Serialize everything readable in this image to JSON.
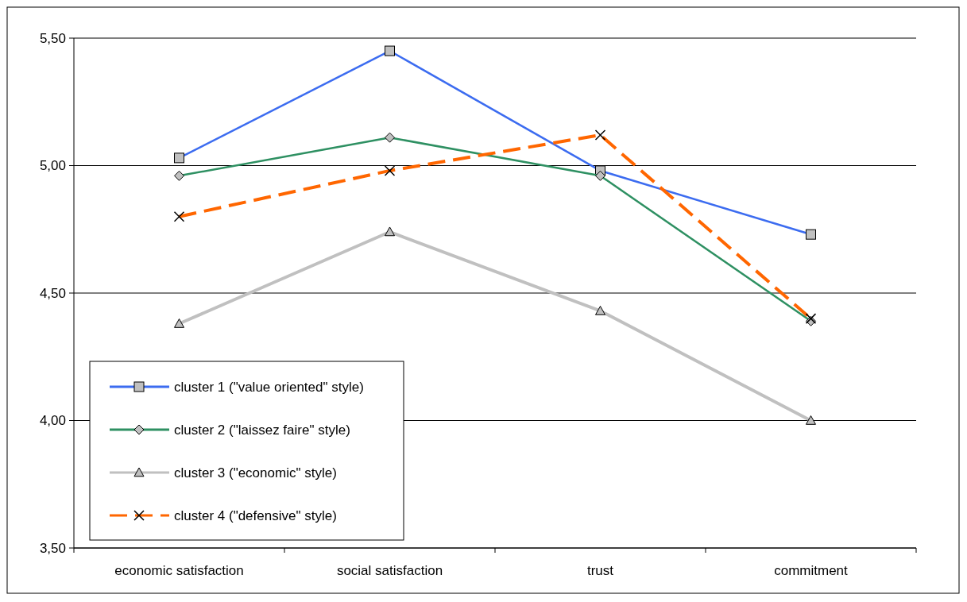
{
  "chart_data": {
    "type": "line",
    "categories": [
      "economic satisfaction",
      "social satisfaction",
      "trust",
      "commitment"
    ],
    "series": [
      {
        "name": "cluster 1 (\"value oriented\" style)",
        "color": "#3c6cf0",
        "marker": "square",
        "line_style": "solid",
        "values": [
          5.03,
          5.45,
          4.98,
          4.73
        ]
      },
      {
        "name": "cluster 2 (\"laissez faire\" style)",
        "color": "#2e9062",
        "marker": "diamond",
        "line_style": "solid",
        "values": [
          4.96,
          5.11,
          4.96,
          4.39
        ]
      },
      {
        "name": "cluster 3 (\"economic\" style)",
        "color": "#c0c0c0",
        "marker": "triangle",
        "line_style": "solid",
        "values": [
          4.38,
          4.74,
          4.43,
          4.0
        ]
      },
      {
        "name": "cluster 4 (\"defensive\" style)",
        "color": "#ff6600",
        "marker": "cross",
        "line_style": "dashed",
        "values": [
          4.8,
          4.98,
          5.12,
          4.4
        ]
      }
    ],
    "ylim": [
      3.5,
      5.5
    ],
    "yticks": [
      {
        "value": 3.5,
        "label": "3,50"
      },
      {
        "value": 4.0,
        "label": "4,00"
      },
      {
        "value": 4.5,
        "label": "4,50"
      },
      {
        "value": 5.0,
        "label": "5,00"
      },
      {
        "value": 5.5,
        "label": "5,50"
      }
    ],
    "grid": "y",
    "legend": "bottom left"
  }
}
